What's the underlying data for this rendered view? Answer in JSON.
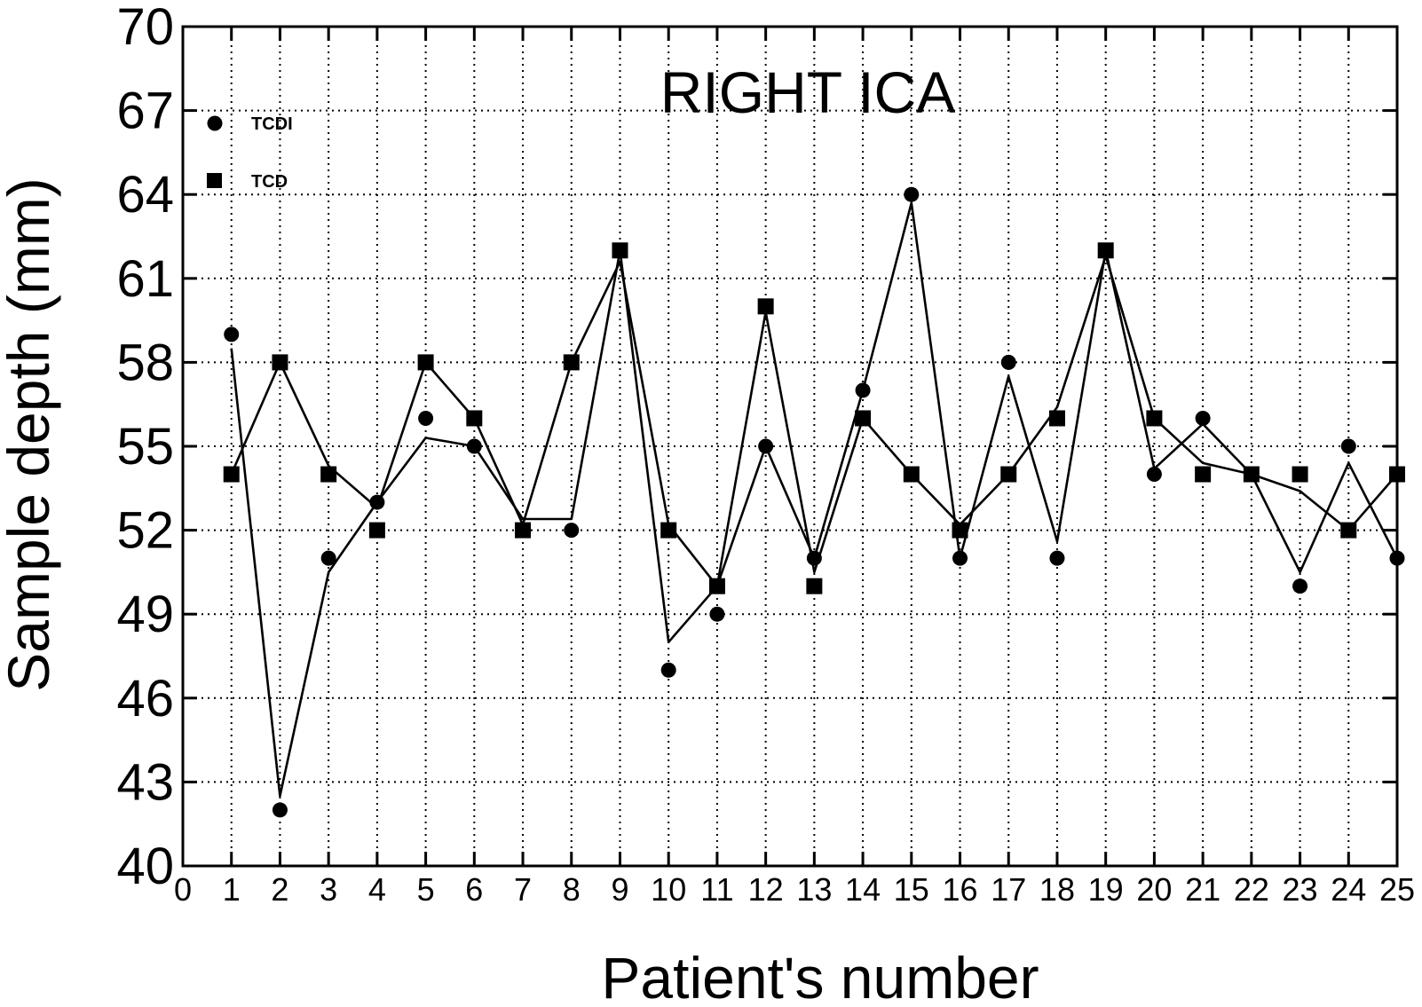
{
  "chart_data": {
    "type": "scatter",
    "title": "RIGHT ICA",
    "xlabel": "Patient's number",
    "ylabel": "Sample depth (mm)",
    "xlim": [
      0,
      25
    ],
    "ylim": [
      40,
      70
    ],
    "xticks": [
      "0",
      "1",
      "2",
      "3",
      "4",
      "5",
      "6",
      "7",
      "8",
      "9",
      "10",
      "11",
      "12",
      "13",
      "14",
      "15",
      "16",
      "17",
      "18",
      "19",
      "20",
      "21",
      "22",
      "23",
      "24",
      "25"
    ],
    "yticks": [
      "40",
      "43",
      "46",
      "49",
      "52",
      "55",
      "58",
      "61",
      "64",
      "67",
      "70"
    ],
    "grid": true,
    "legend_position": "top-left",
    "series": [
      {
        "name": "TCDI",
        "marker": "circle",
        "x": [
          1,
          2,
          3,
          4,
          5,
          6,
          7,
          8,
          9,
          10,
          11,
          12,
          13,
          14,
          15,
          16,
          17,
          18,
          19,
          20,
          21,
          22,
          23,
          24,
          25
        ],
        "values": [
          59,
          42,
          51,
          53,
          56,
          55,
          52,
          52,
          62,
          47,
          49,
          55,
          51,
          57,
          64,
          51,
          58,
          51,
          62,
          54,
          56,
          54,
          50,
          55,
          51
        ],
        "fit_values": [
          58.5,
          42.5,
          50.5,
          53,
          55.3,
          55,
          52.4,
          52.4,
          62,
          48,
          50,
          55,
          51,
          57,
          63.7,
          51,
          57.5,
          51.6,
          62,
          54.2,
          55.8,
          54,
          50.5,
          54.4,
          51
        ]
      },
      {
        "name": "TCD",
        "marker": "square",
        "x": [
          1,
          2,
          3,
          4,
          5,
          6,
          7,
          8,
          9,
          10,
          11,
          12,
          13,
          14,
          15,
          16,
          17,
          18,
          19,
          20,
          21,
          22,
          23,
          24,
          25
        ],
        "values": [
          54,
          58,
          54,
          52,
          58,
          56,
          52,
          58,
          62,
          52,
          50,
          60,
          50,
          56,
          54,
          52,
          54,
          56,
          62,
          56,
          54,
          54,
          54,
          52,
          54
        ],
        "fit_values": [
          54,
          58,
          54.3,
          52.8,
          58,
          56,
          52.2,
          58,
          61.6,
          52.2,
          50,
          59.8,
          50.5,
          56,
          54,
          52.2,
          54,
          56.4,
          61.8,
          56,
          54.4,
          54,
          53.4,
          52,
          54
        ]
      }
    ]
  }
}
